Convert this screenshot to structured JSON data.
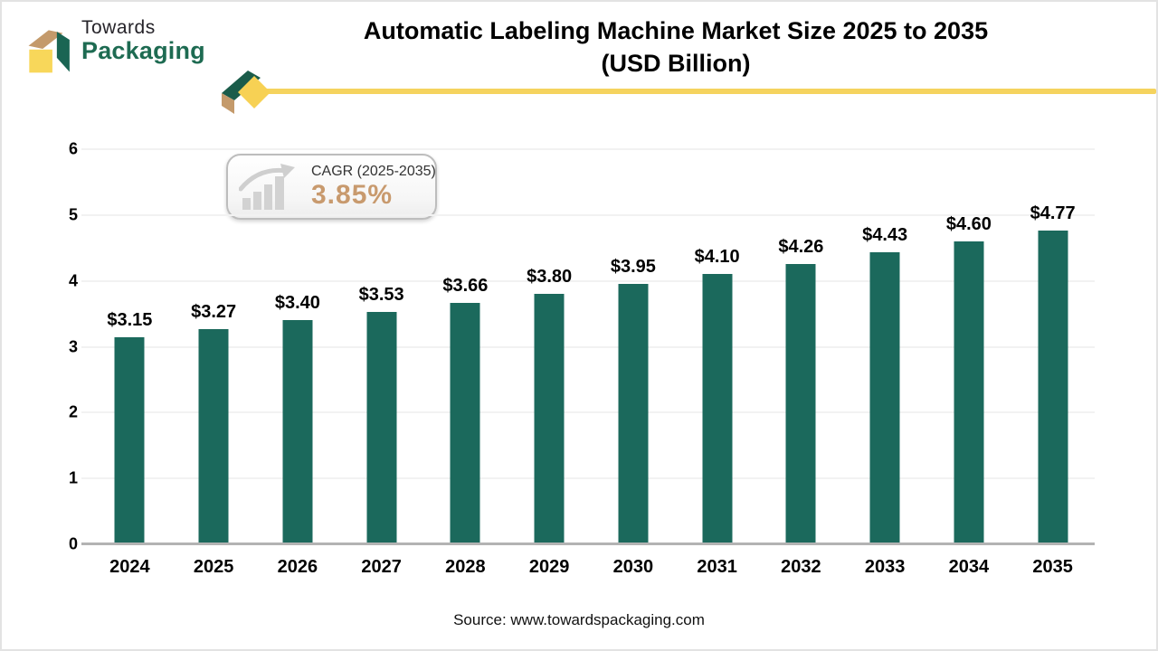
{
  "logo": {
    "towards": "Towards",
    "packaging": "Packaging"
  },
  "header": {
    "title_line1": "Automatic Labeling Machine Market Size 2025 to 2035",
    "title_line2": "(USD Billion)"
  },
  "cagr_badge": {
    "label": "CAGR (2025-2035)",
    "value": "3.85%"
  },
  "chart_data": {
    "type": "bar",
    "title": "Automatic Labeling Machine Market Size 2025 to 2035 (USD Billion)",
    "categories": [
      "2024",
      "2025",
      "2026",
      "2027",
      "2028",
      "2029",
      "2030",
      "2031",
      "2032",
      "2033",
      "2034",
      "2035"
    ],
    "values": [
      3.15,
      3.27,
      3.4,
      3.53,
      3.66,
      3.8,
      3.95,
      4.1,
      4.26,
      4.43,
      4.6,
      4.77
    ],
    "labels": [
      "$3.15",
      "$3.27",
      "$3.40",
      "$3.53",
      "$3.66",
      "$3.80",
      "$3.95",
      "$4.10",
      "$4.26",
      "$4.43",
      "$4.60",
      "$4.77"
    ],
    "xlabel": "",
    "ylabel": "",
    "ylim": [
      0,
      6
    ],
    "yticks": [
      0,
      1,
      2,
      3,
      4,
      5,
      6
    ],
    "grid": true,
    "legend": "none"
  },
  "source": {
    "text": "Source: www.towardspackaging.com"
  },
  "colors": {
    "bar": "#1b695c",
    "accent_yellow": "#f5d35e",
    "logo_green": "#1e6b52",
    "logo_tan": "#c49a6b",
    "cagr_value": "#c89a6e",
    "icon_gray": "#d2d2d2"
  }
}
